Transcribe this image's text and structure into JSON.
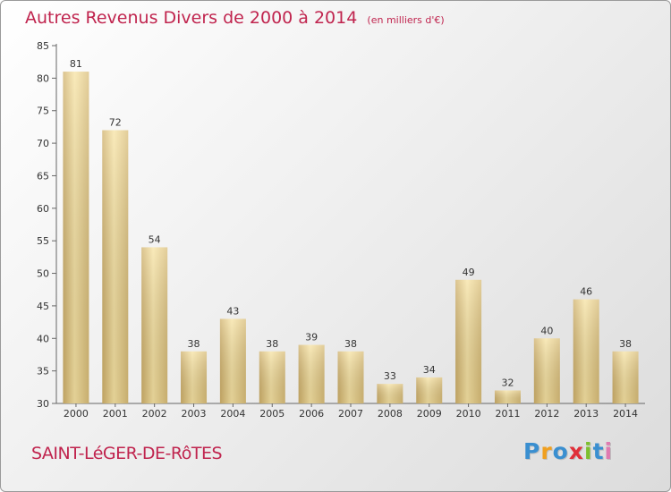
{
  "title": "Autres Revenus Divers de 2000 à 2014",
  "unit": "(en milliers d'€)",
  "place": "SAINT-LéGER-DE-RôTES",
  "logo": {
    "letters": [
      "P",
      "r",
      "o",
      "x",
      "i",
      "t",
      "i"
    ],
    "colors": [
      "#3a8fd0",
      "#f0a020",
      "#3a8fd0",
      "#e0303a",
      "#7cbf2e",
      "#3a8fd0",
      "#e07ab0"
    ]
  },
  "colors": {
    "bar_light": "#f7e3a3",
    "bar_dark": "#cfb06a",
    "accent": "#c0244e"
  },
  "chart_data": {
    "type": "bar",
    "categories": [
      "2000",
      "2001",
      "2002",
      "2003",
      "2004",
      "2005",
      "2006",
      "2007",
      "2008",
      "2009",
      "2010",
      "2011",
      "2012",
      "2013",
      "2014"
    ],
    "values": [
      81,
      72,
      54,
      38,
      43,
      38,
      39,
      38,
      33,
      34,
      49,
      32,
      40,
      46,
      38
    ],
    "ylim": [
      30,
      85
    ],
    "yticks": [
      30,
      35,
      40,
      45,
      50,
      55,
      60,
      65,
      70,
      75,
      80,
      85
    ],
    "grid": false
  }
}
